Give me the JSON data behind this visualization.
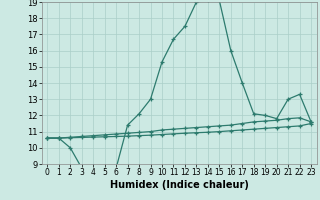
{
  "xlabel": "Humidex (Indice chaleur)",
  "bg_color": "#cce9e3",
  "grid_color": "#aacfc8",
  "line_color": "#2d7b6e",
  "xlim": [
    -0.5,
    23.5
  ],
  "ylim": [
    9,
    19
  ],
  "xticks": [
    0,
    1,
    2,
    3,
    4,
    5,
    6,
    7,
    8,
    9,
    10,
    11,
    12,
    13,
    14,
    15,
    16,
    17,
    18,
    19,
    20,
    21,
    22,
    23
  ],
  "yticks": [
    9,
    10,
    11,
    12,
    13,
    14,
    15,
    16,
    17,
    18,
    19
  ],
  "line1_x": [
    0,
    1,
    2,
    3,
    4,
    5,
    6,
    7,
    8,
    9,
    10,
    11,
    12,
    13,
    14,
    15,
    16,
    17,
    18,
    19,
    20,
    21,
    22,
    23
  ],
  "line1_y": [
    10.6,
    10.6,
    10.0,
    8.75,
    8.9,
    8.75,
    8.75,
    11.4,
    12.1,
    13.0,
    15.3,
    16.7,
    17.5,
    19.0,
    19.1,
    19.1,
    16.0,
    14.0,
    12.1,
    12.0,
    11.8,
    13.0,
    13.3,
    11.6
  ],
  "line2_x": [
    0,
    1,
    2,
    3,
    4,
    5,
    6,
    7,
    8,
    9,
    10,
    11,
    12,
    13,
    14,
    15,
    16,
    17,
    18,
    19,
    20,
    21,
    22,
    23
  ],
  "line2_y": [
    10.6,
    10.6,
    10.65,
    10.7,
    10.75,
    10.8,
    10.85,
    10.9,
    10.95,
    11.0,
    11.1,
    11.15,
    11.2,
    11.25,
    11.3,
    11.35,
    11.4,
    11.5,
    11.6,
    11.65,
    11.7,
    11.8,
    11.85,
    11.6
  ],
  "line3_x": [
    0,
    1,
    2,
    3,
    4,
    5,
    6,
    7,
    8,
    9,
    10,
    11,
    12,
    13,
    14,
    15,
    16,
    17,
    18,
    19,
    20,
    21,
    22,
    23
  ],
  "line3_y": [
    10.6,
    10.6,
    10.62,
    10.64,
    10.66,
    10.68,
    10.7,
    10.72,
    10.75,
    10.78,
    10.82,
    10.86,
    10.9,
    10.93,
    10.96,
    11.0,
    11.05,
    11.1,
    11.15,
    11.2,
    11.25,
    11.3,
    11.35,
    11.5
  ]
}
